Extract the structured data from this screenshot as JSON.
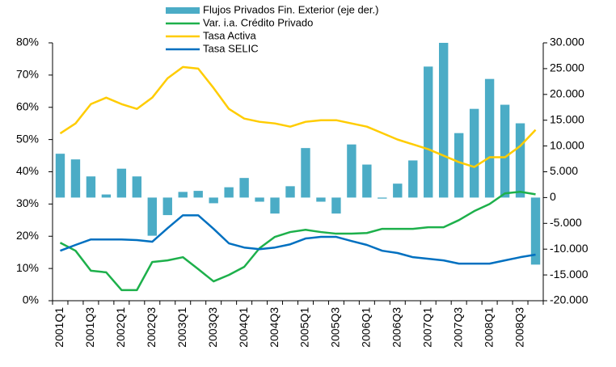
{
  "chart_data": {
    "type": "combo",
    "categories": [
      "2001Q1",
      null,
      "2001Q3",
      null,
      "2002Q1",
      null,
      "2002Q3",
      null,
      "2003Q1",
      null,
      "2003Q3",
      null,
      "2004Q1",
      null,
      "2004Q3",
      null,
      "2005Q1",
      null,
      "2005Q3",
      null,
      "2006Q1",
      null,
      "2006Q3",
      null,
      "2007Q1",
      null,
      "2007Q3",
      null,
      "2008Q1",
      null,
      "2008Q3",
      null
    ],
    "series": [
      {
        "name": "Flujos Privados Fin. Exterior (eje der.)",
        "type": "bar",
        "axis": "y2",
        "color": "#4bacc6",
        "values": [
          8500,
          7400,
          4100,
          600,
          5600,
          4100,
          -7400,
          -3400,
          1100,
          1300,
          -1100,
          2000,
          3800,
          -800,
          -3100,
          2200,
          9600,
          -800,
          -3100,
          10300,
          6400,
          -200,
          2700,
          7200,
          25400,
          30000,
          12500,
          17200,
          23000,
          18000,
          14400,
          -13000
        ]
      },
      {
        "name": "Var. i.a. Crédito Privado",
        "type": "line",
        "color": "#1db04b",
        "values": [
          18,
          15.5,
          9.3,
          8.8,
          3.3,
          3.3,
          12,
          12.5,
          13.5,
          9.8,
          6,
          8,
          10.5,
          16.3,
          19.8,
          21.3,
          22,
          21.3,
          20.8,
          20.8,
          21,
          22.3,
          22.3,
          22.3,
          22.8,
          22.8,
          25,
          27.8,
          30,
          33.3,
          33.8,
          33
        ]
      },
      {
        "name": "Tasa Activa",
        "type": "line",
        "color": "#ffcc00",
        "values": [
          51.9,
          55,
          61,
          63,
          61,
          59.5,
          63,
          69,
          72.5,
          72,
          66,
          59.5,
          56.5,
          55.5,
          55,
          54,
          55.5,
          56,
          56,
          55,
          54,
          52,
          50,
          48.5,
          47,
          45,
          43,
          41.5,
          44.5,
          44.5,
          48,
          53
        ]
      },
      {
        "name": "Tasa SELIC",
        "type": "line",
        "color": "#0070c0",
        "values": [
          15.5,
          17.3,
          19,
          19,
          19,
          18.8,
          18.3,
          22.5,
          26.5,
          26.5,
          22.3,
          17.8,
          16.5,
          16,
          16.5,
          17.5,
          19.3,
          19.8,
          19.8,
          18.5,
          17.3,
          15.5,
          14.8,
          13.5,
          13,
          12.5,
          11.5,
          11.5,
          11.5,
          12.5,
          13.5,
          14.3
        ]
      }
    ],
    "ylim": [
      0,
      80
    ],
    "yticks": [
      {
        "value": 0,
        "label": "0%"
      },
      {
        "value": 10,
        "label": "10%"
      },
      {
        "value": 20,
        "label": "20%"
      },
      {
        "value": 30,
        "label": "30%"
      },
      {
        "value": 40,
        "label": "40%"
      },
      {
        "value": 50,
        "label": "50%"
      },
      {
        "value": 60,
        "label": "60%"
      },
      {
        "value": 70,
        "label": "70%"
      },
      {
        "value": 80,
        "label": "80%"
      }
    ],
    "y2lim": [
      -20000,
      30000
    ],
    "y2ticks": [
      {
        "value": -20000,
        "label": "-20.000"
      },
      {
        "value": -15000,
        "label": "-15.000"
      },
      {
        "value": -10000,
        "label": "-10.000"
      },
      {
        "value": -5000,
        "label": "-5.000"
      },
      0,
      {
        "value": 5000,
        "label": "5.000"
      },
      {
        "value": 10000,
        "label": "10.000"
      },
      {
        "value": 15000,
        "label": "15.000"
      },
      {
        "value": 20000,
        "label": "20.000"
      },
      {
        "value": 25000,
        "label": "25.000"
      },
      {
        "value": 30000,
        "label": "30.000"
      }
    ],
    "legend": "top"
  }
}
